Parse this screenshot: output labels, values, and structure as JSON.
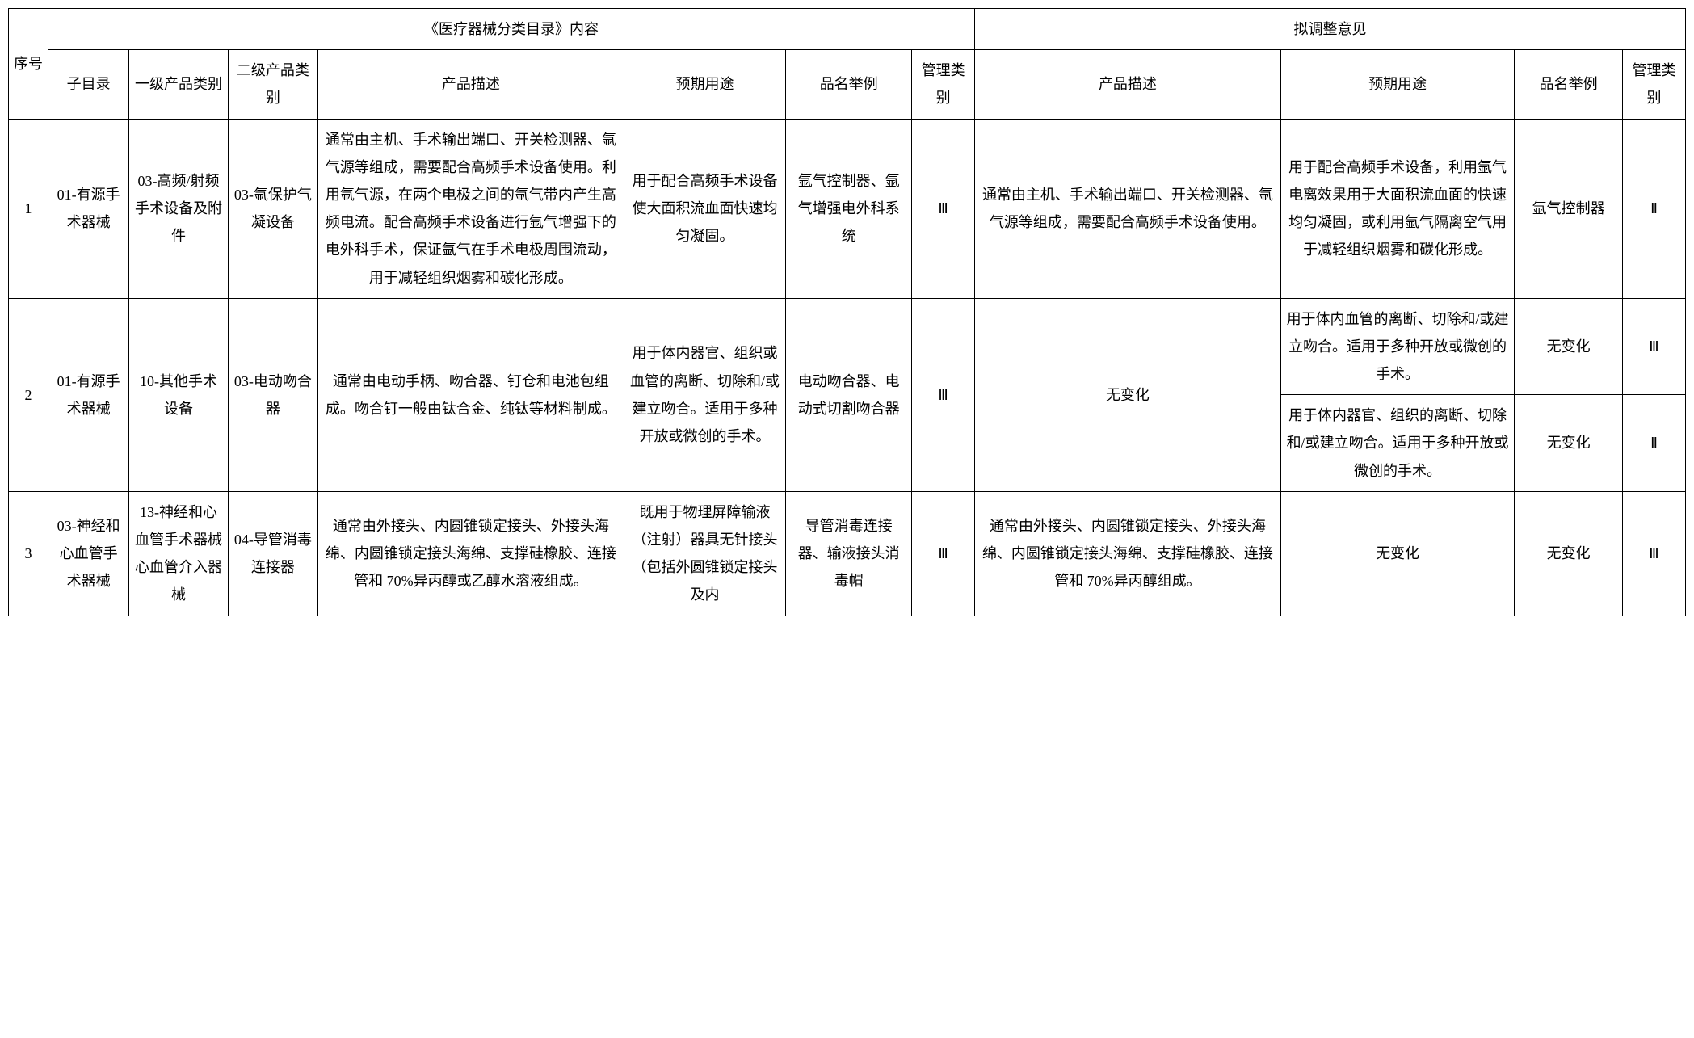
{
  "table": {
    "header": {
      "group_left": "《医疗器械分类目录》内容",
      "group_right": "拟调整意见",
      "seq": "序号",
      "sub_catalog": "子目录",
      "cat1": "一级产品类别",
      "cat2": "二级产品类别",
      "desc": "产品描述",
      "use": "预期用途",
      "example": "品名举例",
      "mgmt": "管理类别"
    },
    "rows": {
      "r1": {
        "seq": "1",
        "sub": "01-有源手术器械",
        "cat1": "03-高频/射频手术设备及附件",
        "cat2": "03-氩保护气凝设备",
        "desc": "通常由主机、手术输出端口、开关检测器、氩气源等组成，需要配合高频手术设备使用。利用氩气源，在两个电极之间的氩气带内产生高频电流。配合高频手术设备进行氩气增强下的电外科手术，保证氩气在手术电极周围流动，用于减轻组织烟雾和碳化形成。",
        "use": "用于配合高频手术设备使大面积流血面快速均匀凝固。",
        "example": "氩气控制器、氩气增强电外科系统",
        "mgmt": "Ⅲ",
        "desc2": "通常由主机、手术输出端口、开关检测器、氩气源等组成，需要配合高频手术设备使用。",
        "use2": "用于配合高频手术设备，利用氩气电离效果用于大面积流血面的快速均匀凝固，或利用氩气隔离空气用于减轻组织烟雾和碳化形成。",
        "example2": "氩气控制器",
        "mgmt2": "Ⅱ"
      },
      "r2": {
        "seq": "2",
        "sub": "01-有源手术器械",
        "cat1": "10-其他手术设备",
        "cat2": "03-电动吻合器",
        "desc": "通常由电动手柄、吻合器、钉仓和电池包组成。吻合钉一般由钛合金、纯钛等材料制成。",
        "use": "用于体内器官、组织或血管的离断、切除和/或建立吻合。适用于多种开放或微创的手术。",
        "example": "电动吻合器、电动式切割吻合器",
        "mgmt": "Ⅲ",
        "desc2": "无变化",
        "sub_a": {
          "use2": "用于体内血管的离断、切除和/或建立吻合。适用于多种开放或微创的手术。",
          "example2": "无变化",
          "mgmt2": "Ⅲ"
        },
        "sub_b": {
          "use2": "用于体内器官、组织的离断、切除和/或建立吻合。适用于多种开放或微创的手术。",
          "example2": "无变化",
          "mgmt2": "Ⅱ"
        }
      },
      "r3": {
        "seq": "3",
        "sub": "03-神经和心血管手术器械",
        "cat1": "13-神经和心血管手术器械心血管介入器械",
        "cat2": "04-导管消毒连接器",
        "desc": "通常由外接头、内圆锥锁定接头、外接头海绵、内圆锥锁定接头海绵、支撑硅橡胶、连接管和 70%异丙醇或乙醇水溶液组成。",
        "use": "既用于物理屏障输液（注射）器具无针接头（包括外圆锥锁定接头及内",
        "example": "导管消毒连接器、输液接头消毒帽",
        "mgmt": "Ⅲ",
        "desc2": "通常由外接头、内圆锥锁定接头、外接头海绵、内圆锥锁定接头海绵、支撑硅橡胶、连接管和 70%异丙醇组成。",
        "use2": "无变化",
        "example2": "无变化",
        "mgmt2": "Ⅲ"
      }
    }
  },
  "style": {
    "font_family": "SimSun",
    "border_color": "#000000",
    "background_color": "#ffffff",
    "text_color": "#000000",
    "base_fontsize_pt": 14,
    "line_height": 1.9
  }
}
